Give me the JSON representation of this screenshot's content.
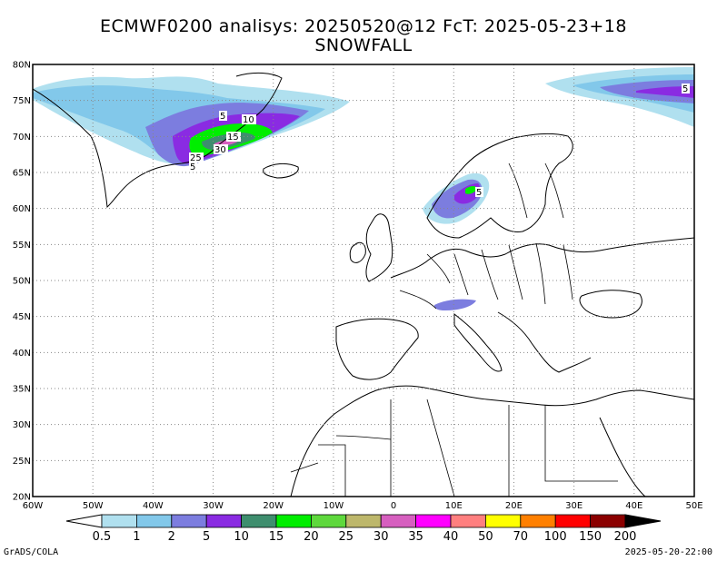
{
  "title": {
    "line1": "ECMWF0200 analisys: 20250520@12 FcT: 2025-05-23+18",
    "line2": "SNOWFALL"
  },
  "map": {
    "lat_labels": [
      "80N",
      "75N",
      "70N",
      "65N",
      "60N",
      "55N",
      "50N",
      "45N",
      "40N",
      "35N",
      "30N",
      "25N",
      "20N"
    ],
    "lon_labels": [
      "60W",
      "50W",
      "40W",
      "30W",
      "20W",
      "10W",
      "0",
      "10E",
      "20E",
      "30E",
      "40E",
      "50E"
    ],
    "lat_range": [
      20,
      80
    ],
    "lon_range": [
      -60,
      50
    ],
    "gridlines": "dotted",
    "contour_labels": [
      {
        "text": "5",
        "area": "Greenland north"
      },
      {
        "text": "10",
        "area": "Greenland east"
      },
      {
        "text": "15",
        "area": "Greenland east"
      },
      {
        "text": "30",
        "area": "Greenland southeast"
      },
      {
        "text": "25",
        "area": "Greenland southeast"
      },
      {
        "text": "5",
        "area": "Greenland southeast"
      },
      {
        "text": "5",
        "area": "Scandinavia"
      },
      {
        "text": "5",
        "area": "Arctic, north of Russia"
      }
    ]
  },
  "colorbar": {
    "labels": [
      "0.5",
      "1",
      "2",
      "5",
      "10",
      "15",
      "20",
      "25",
      "30",
      "35",
      "40",
      "50",
      "70",
      "100",
      "150",
      "200"
    ],
    "colors": [
      "#ffffff",
      "#b0e0ef",
      "#82c8ea",
      "#7c7ddf",
      "#8a2be2",
      "#3e8e6e",
      "#00ee00",
      "#5ed83c",
      "#bdb76b",
      "#d65fbf",
      "#ff00ff",
      "#ff7f7f",
      "#ffff00",
      "#ff8000",
      "#ff0000",
      "#8b0000",
      "#000000"
    ]
  },
  "footer": {
    "left": "GrADS/COLA",
    "right": "2025-05-20-22:00"
  }
}
